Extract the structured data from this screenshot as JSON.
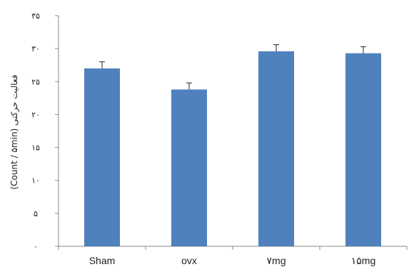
{
  "chart_data": {
    "type": "bar",
    "categories": [
      "Sham",
      "ovx",
      "۷mg",
      "۱۵mg"
    ],
    "values": [
      27.0,
      23.8,
      29.6,
      29.3
    ],
    "errors": [
      1.0,
      1.0,
      1.0,
      1.0
    ],
    "ylabel": "(Count / ۵min) فعالیت حرکتی",
    "ylim": [
      0,
      35
    ],
    "yticks": [
      0,
      5,
      10,
      15,
      20,
      25,
      30,
      35
    ],
    "ytick_labels": [
      "۰",
      "۵",
      "۱۰",
      "۱۵",
      "۲۰",
      "۲۵",
      "۳۰",
      "۳۵"
    ],
    "bar_color": "#4f81bd",
    "grid": false,
    "legend": "none"
  }
}
